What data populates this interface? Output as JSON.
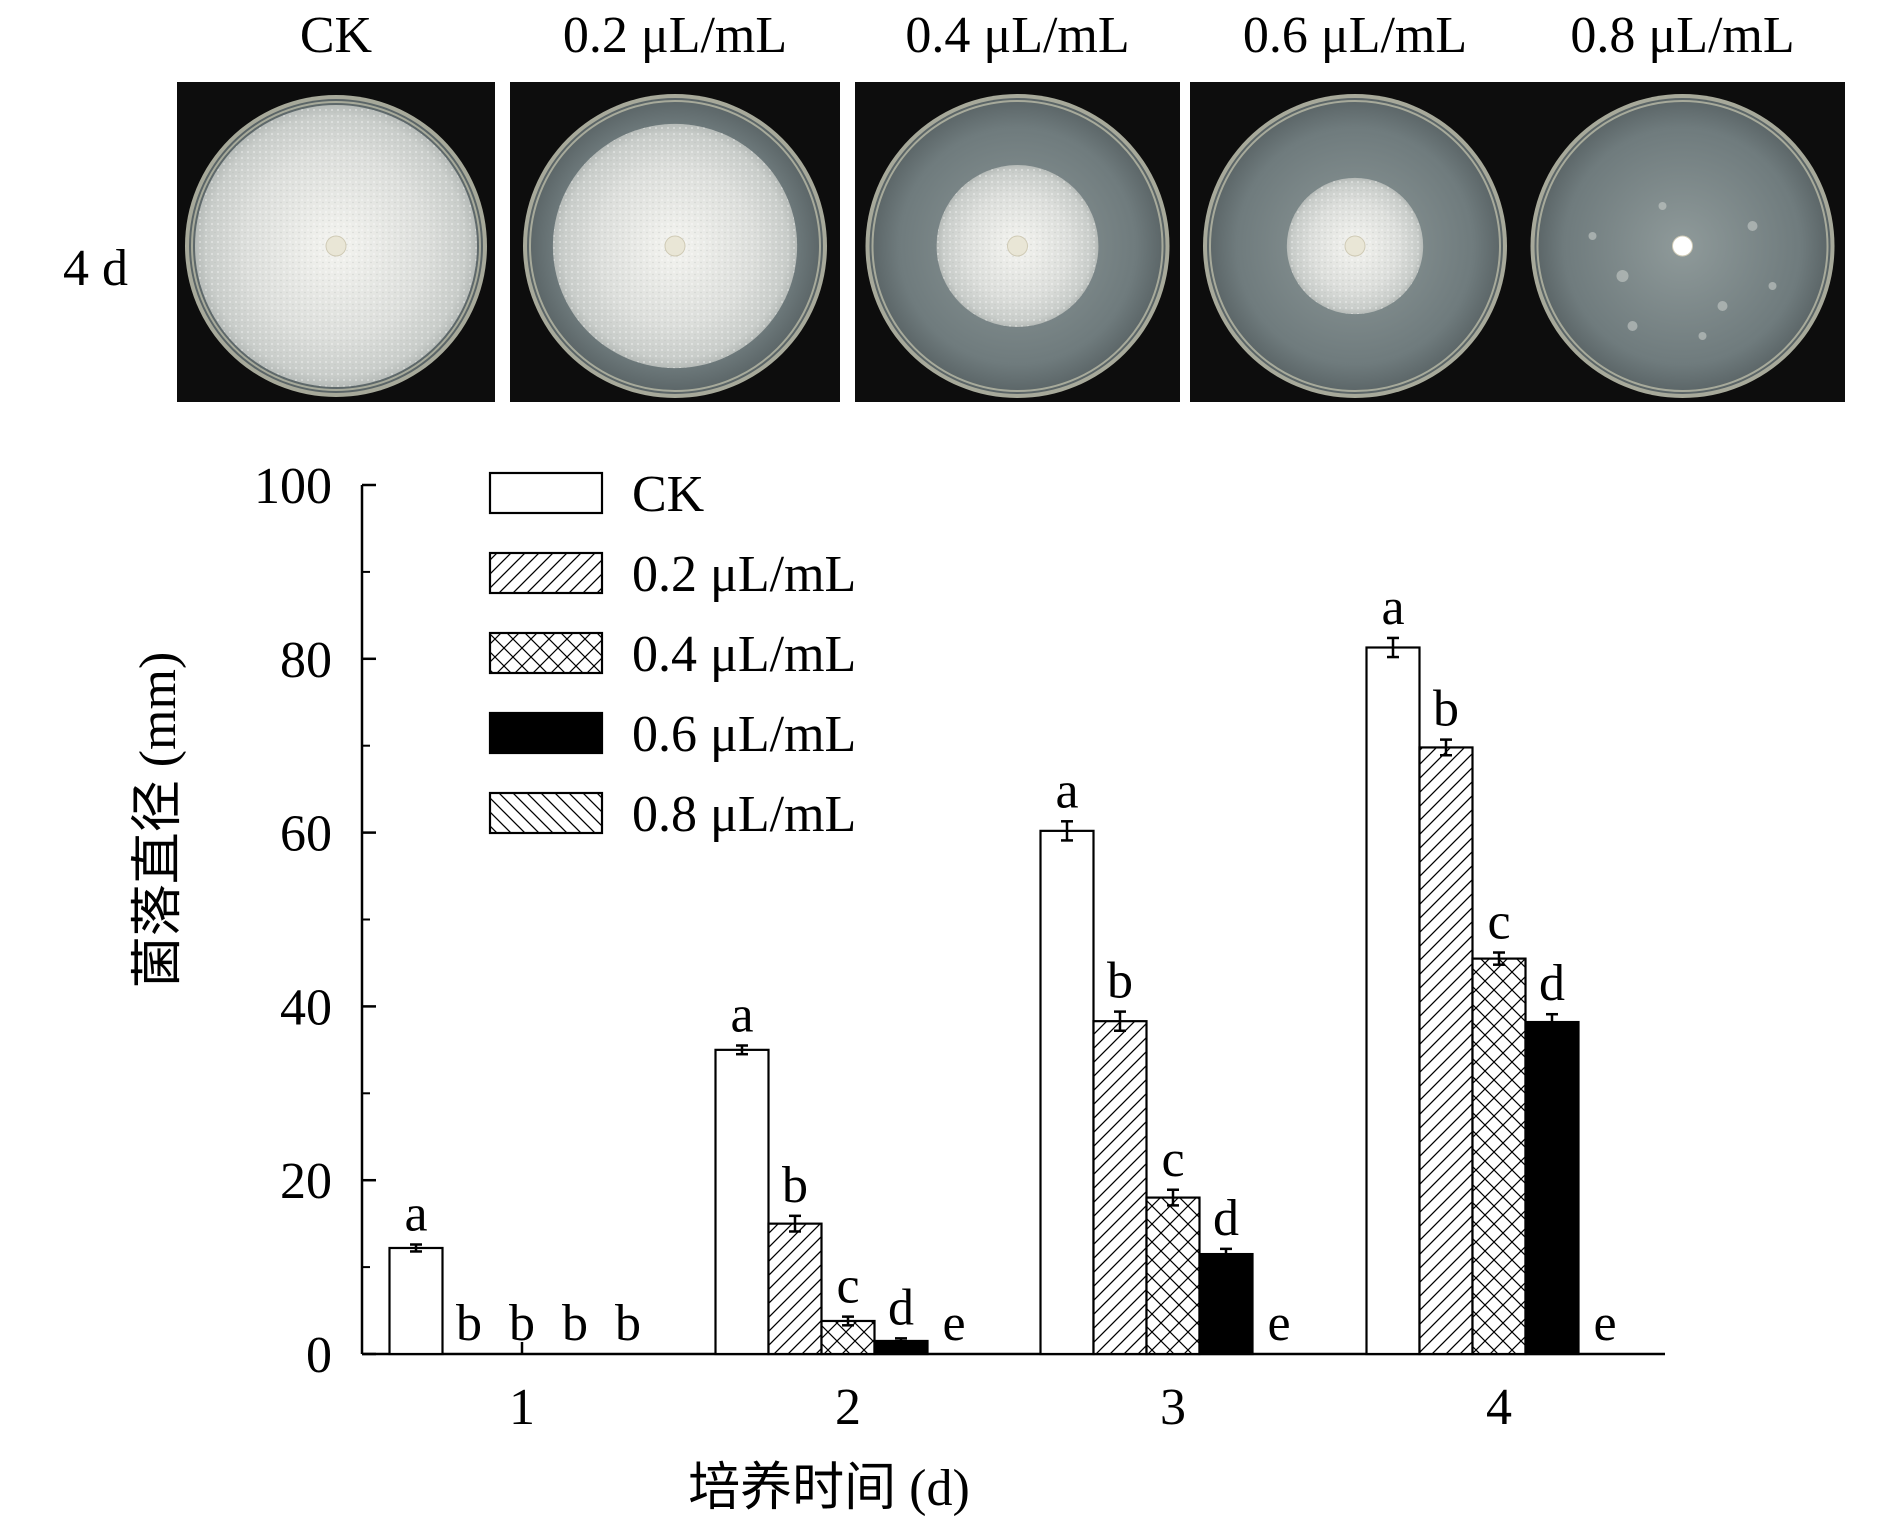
{
  "photo_panel": {
    "row_label": "4 d",
    "plates": [
      {
        "label": "CK",
        "colony_fraction": 1.0
      },
      {
        "label": "0.2 μL/mL",
        "colony_fraction": 0.86
      },
      {
        "label": "0.4 μL/mL",
        "colony_fraction": 0.57
      },
      {
        "label": "0.6 μL/mL",
        "colony_fraction": 0.48
      },
      {
        "label": "0.8 μL/mL",
        "colony_fraction": 0.0
      }
    ]
  },
  "chart_data": {
    "type": "bar",
    "title": "",
    "xlabel": "培养时间 (d)",
    "ylabel": "菌落直径 (mm)",
    "ylim": [
      0,
      100
    ],
    "yticks": [
      0,
      20,
      40,
      60,
      80,
      100
    ],
    "categories": [
      "1",
      "2",
      "3",
      "4"
    ],
    "legend_position": "top-left",
    "series": [
      {
        "name": "CK",
        "pattern": "none",
        "values": [
          12.2,
          35.0,
          60.2,
          81.3
        ],
        "errors": [
          0.4,
          0.5,
          1.1,
          1.1
        ],
        "letters": [
          "a",
          "a",
          "a",
          "a"
        ]
      },
      {
        "name": "0.2 μL/mL",
        "pattern": "diag-right",
        "values": [
          0,
          15.0,
          38.3,
          69.8
        ],
        "errors": [
          0,
          0.9,
          1.1,
          0.9
        ],
        "letters": [
          "b",
          "b",
          "b",
          "b"
        ]
      },
      {
        "name": "0.4 μL/mL",
        "pattern": "crosshatch",
        "values": [
          0,
          3.8,
          18.0,
          45.5
        ],
        "errors": [
          0,
          0.5,
          0.9,
          0.7
        ],
        "letters": [
          "b",
          "c",
          "c",
          "c"
        ]
      },
      {
        "name": "0.6 μL/mL",
        "pattern": "solid",
        "values": [
          0,
          1.5,
          11.5,
          38.2
        ],
        "errors": [
          0,
          0.3,
          0.6,
          0.9
        ],
        "letters": [
          "b",
          "d",
          "d",
          "d"
        ]
      },
      {
        "name": "0.8 μL/mL",
        "pattern": "diag-left",
        "values": [
          0,
          0,
          0,
          0
        ],
        "errors": [
          0,
          0,
          0,
          0
        ],
        "letters": [
          "b",
          "e",
          "e",
          "e"
        ]
      }
    ]
  }
}
